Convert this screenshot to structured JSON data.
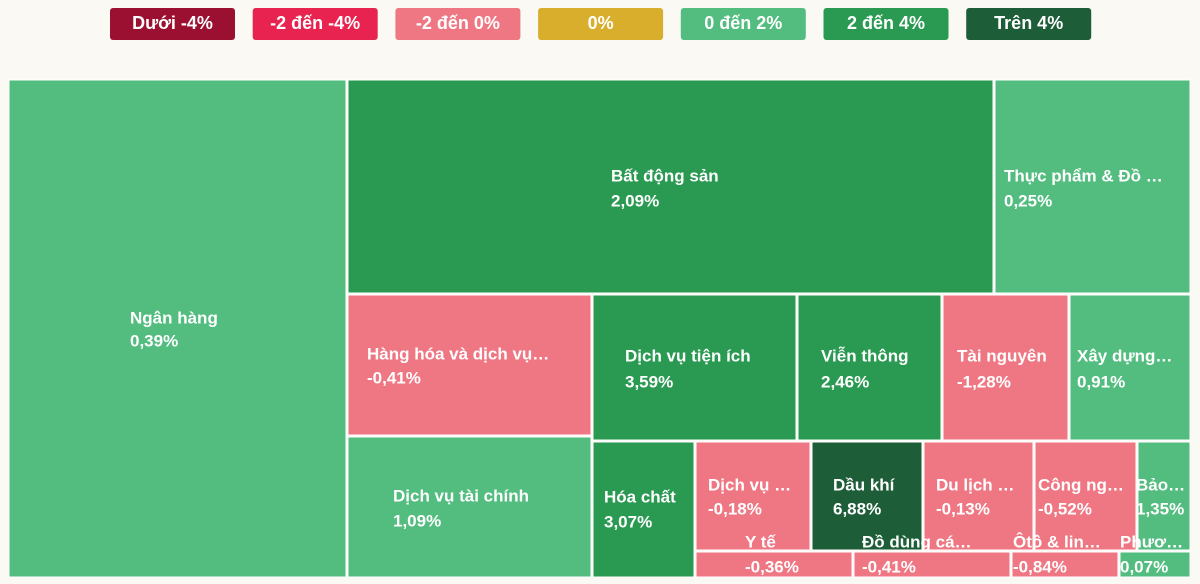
{
  "chart_data": {
    "type": "treemap",
    "legend": [
      {
        "label": "Dưới -4%",
        "color": "#9b1030"
      },
      {
        "label": "-2 đến -4%",
        "color": "#e8234f"
      },
      {
        "label": "-2 đến 0%",
        "color": "#ef7783"
      },
      {
        "label": "0%",
        "color": "#d8ae2c"
      },
      {
        "label": "0 đến 2%",
        "color": "#52bd7f"
      },
      {
        "label": "2 đến 4%",
        "color": "#2a9a52"
      },
      {
        "label": "Trên 4%",
        "color": "#1d5e38"
      }
    ],
    "categories": [
      "Ngân hàng",
      "Bất động sản",
      "Thực phẩm & Đồ …",
      "Hàng hóa và dịch vụ…",
      "Dịch vụ tiện ích",
      "Viễn thông",
      "Tài nguyên",
      "Xây dựng…",
      "Dịch vụ tài chính",
      "Hóa chất",
      "Dịch vụ …",
      "Dầu khí",
      "Du lịch …",
      "Công ng…",
      "Bảo…",
      "Y tế",
      "Đồ dùng cá…",
      "Ôtô & lin…",
      "Phươ…"
    ],
    "values": [
      0.39,
      2.09,
      0.25,
      -0.41,
      3.59,
      2.46,
      -1.28,
      0.91,
      1.09,
      3.07,
      -0.18,
      6.88,
      -0.13,
      -0.52,
      1.35,
      -0.36,
      -0.41,
      -0.84,
      0.07
    ],
    "value_labels": [
      "0,39%",
      "2,09%",
      "0,25%",
      "-0,41%",
      "3,59%",
      "2,46%",
      "-1,28%",
      "0,91%",
      "1,09%",
      "3,07%",
      "-0,18%",
      "6,88%",
      "-0,13%",
      "-0,52%",
      "1,35%",
      "-0,36%",
      "-0,41%",
      "-0,84%",
      "0,07%"
    ],
    "colors": [
      "#52bd7f",
      "#2a9a52",
      "#52bd7f",
      "#ef7783",
      "#2a9a52",
      "#2a9a52",
      "#ef7783",
      "#52bd7f",
      "#52bd7f",
      "#2a9a52",
      "#ef7783",
      "#1d5e38",
      "#ef7783",
      "#ef7783",
      "#52bd7f",
      "#ef7783",
      "#ef7783",
      "#ef7783",
      "#52bd7f"
    ]
  }
}
